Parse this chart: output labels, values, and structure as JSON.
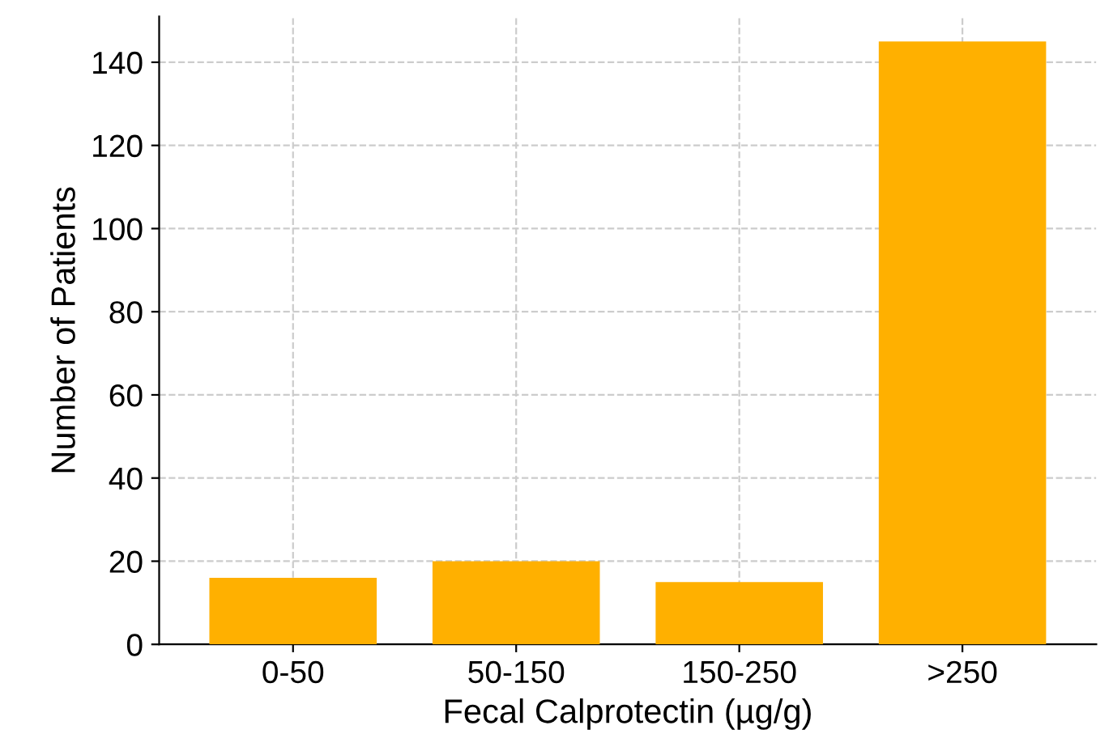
{
  "chart_data": {
    "type": "bar",
    "xlabel": "Fecal Calprotectin (µg/g)",
    "ylabel": "Number of Patients",
    "categories": [
      "0-50",
      "50-150",
      "150-250",
      ">250"
    ],
    "values": [
      16,
      20,
      15,
      145
    ],
    "color": "#ffb000",
    "ylim": [
      0,
      151
    ],
    "yticks": [
      0,
      20,
      40,
      60,
      80,
      100,
      120,
      140
    ],
    "grid": true
  }
}
